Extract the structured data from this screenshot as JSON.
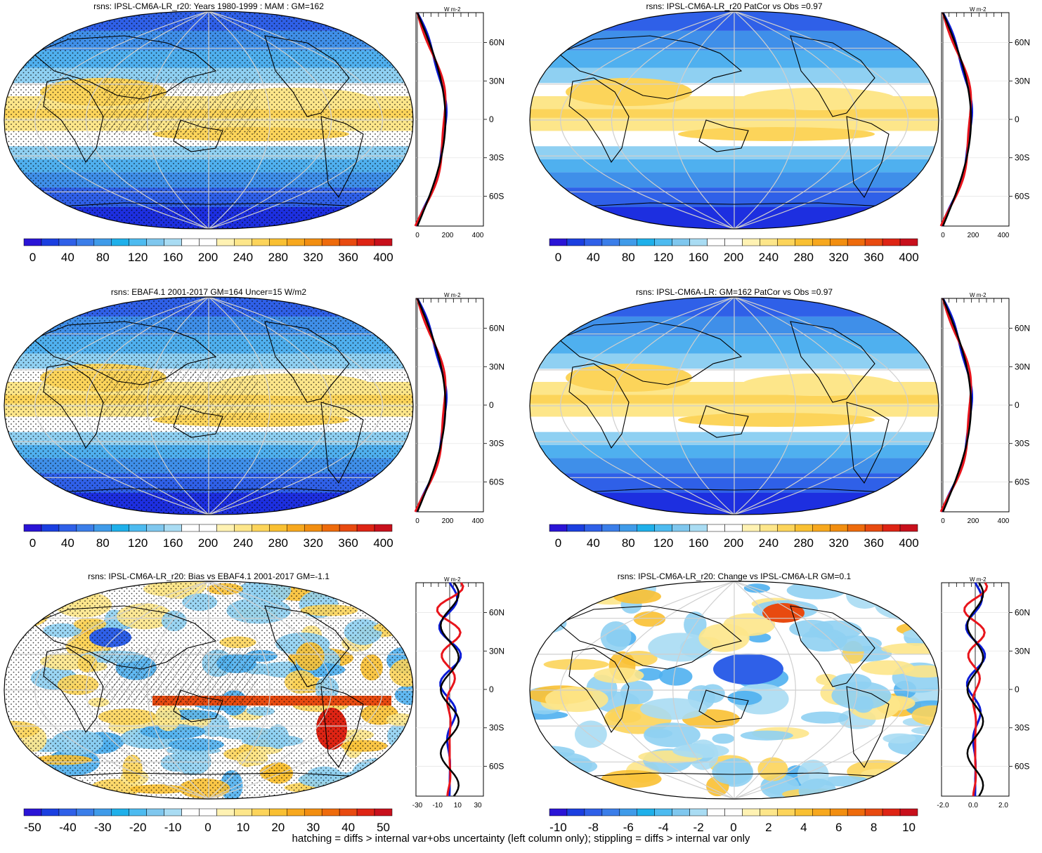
{
  "footer_note": "hatching = diffs > internal var+obs uncertainty (left column only); stippling = diffs > internal var only",
  "colors": {
    "map_ocean_light": "#bfe1f4",
    "land_outline": "#000000",
    "grid": "#cfcfcf",
    "model_line": "#0a1bd6",
    "obs_line": "#e8141b",
    "mean_line": "#000000"
  },
  "palette_full": [
    "#2a14d6",
    "#1b3fe0",
    "#2f60e8",
    "#3b7ee9",
    "#3f9be9",
    "#1fb0ea",
    "#4dbbf0",
    "#7fc7ee",
    "#a9dcf3",
    "#ffffff",
    "#ffffff",
    "#fff2b3",
    "#fde68a",
    "#fcd45a",
    "#f9c032",
    "#f7a81e",
    "#f28e10",
    "#ee6b0c",
    "#e84a10",
    "#de2414",
    "#c8101c"
  ],
  "panels": [
    {
      "id": "a",
      "title": "rsns: IPSL-CM6A-LR_r20: Years 1980-1999 : MAM : GM=162",
      "colorbar_labels": [
        "0",
        "40",
        "80",
        "120",
        "160",
        "200",
        "240",
        "280",
        "320",
        "360",
        "400"
      ],
      "profile_unit": "W m-2",
      "profile_xticks": [
        "0",
        "200",
        "400"
      ],
      "lat_ticks": [
        "60N",
        "30N",
        "0",
        "30S",
        "60S"
      ],
      "kind": "abs"
    },
    {
      "id": "b",
      "title": "rsns: IPSL-CM6A-LR_r20 PatCor vs Obs =0.97",
      "colorbar_labels": [
        "0",
        "40",
        "80",
        "120",
        "160",
        "200",
        "240",
        "280",
        "320",
        "360",
        "400"
      ],
      "profile_unit": "W m-2",
      "profile_xticks": [
        "0",
        "200",
        "400"
      ],
      "lat_ticks": [
        "60N",
        "30N",
        "0",
        "30S",
        "60S"
      ],
      "kind": "abs"
    },
    {
      "id": "c",
      "title": "rsns: EBAF4.1 2001-2017 GM=164 Uncer=15 W/m2",
      "colorbar_labels": [
        "0",
        "40",
        "80",
        "120",
        "160",
        "200",
        "240",
        "280",
        "320",
        "360",
        "400"
      ],
      "profile_unit": "W m-2",
      "profile_xticks": [
        "0",
        "200",
        "400"
      ],
      "lat_ticks": [
        "60N",
        "30N",
        "0",
        "30S",
        "60S"
      ],
      "kind": "abs"
    },
    {
      "id": "d",
      "title": "rsns: IPSL-CM6A-LR: GM=162 PatCor vs Obs =0.97",
      "colorbar_labels": [
        "0",
        "40",
        "80",
        "120",
        "160",
        "200",
        "240",
        "280",
        "320",
        "360",
        "400"
      ],
      "profile_unit": "W m-2",
      "profile_xticks": [
        "0",
        "200",
        "400"
      ],
      "lat_ticks": [
        "60N",
        "30N",
        "0",
        "30S",
        "60S"
      ],
      "kind": "abs"
    },
    {
      "id": "e",
      "title": "rsns: IPSL-CM6A-LR_r20: Bias vs EBAF4.1 2001-2017 GM=-1.1",
      "colorbar_labels": [
        "-50",
        "-40",
        "-30",
        "-20",
        "-10",
        "0",
        "10",
        "20",
        "30",
        "40",
        "50"
      ],
      "profile_unit": "W m-2",
      "profile_xticks": [
        "-30",
        "-10",
        "10",
        "30"
      ],
      "lat_ticks": [
        "60N",
        "30N",
        "0",
        "30S",
        "60S"
      ],
      "kind": "diff"
    },
    {
      "id": "f",
      "title": "rsns: IPSL-CM6A-LR_r20: Change vs IPSL-CM6A-LR GM=0.1",
      "colorbar_labels": [
        "-10",
        "-8",
        "-6",
        "-4",
        "-2",
        "0",
        "2",
        "4",
        "6",
        "8",
        "10"
      ],
      "profile_unit": "W m-2",
      "profile_xticks": [
        "-2.0",
        "0.0",
        "2.0"
      ],
      "lat_ticks": [
        "60N",
        "30N",
        "0",
        "30S",
        "60S"
      ],
      "kind": "diff"
    }
  ]
}
